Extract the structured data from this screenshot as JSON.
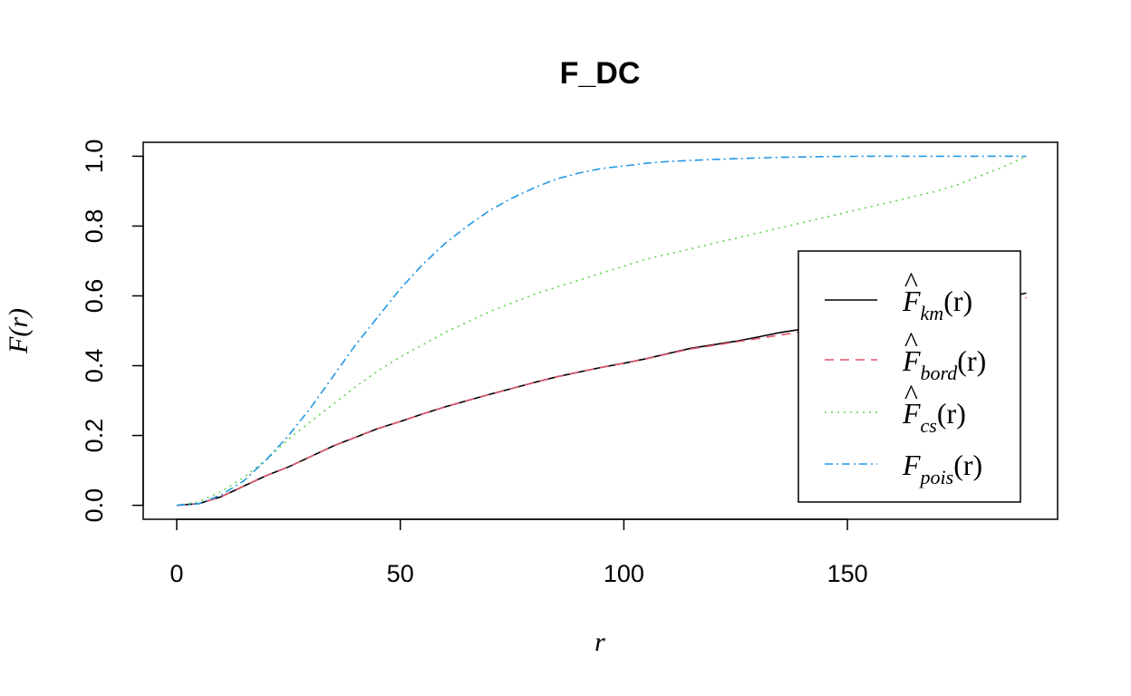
{
  "chart_data": {
    "type": "line",
    "title": "F_DC",
    "xlabel": "r",
    "ylabel": "F(r)",
    "xlim": [
      -7.5,
      197
    ],
    "ylim": [
      -0.04,
      1.04
    ],
    "xticks": [
      0,
      50,
      100,
      150
    ],
    "yticks": [
      0.0,
      0.2,
      0.4,
      0.6,
      0.8,
      1.0
    ],
    "xtick_labels": [
      "0",
      "50",
      "100",
      "150"
    ],
    "ytick_labels": [
      "0.0",
      "0.2",
      "0.4",
      "0.6",
      "0.8",
      "1.0"
    ],
    "grid": false,
    "legend_position": "right",
    "x": [
      0,
      5,
      10,
      15,
      20,
      25,
      30,
      35,
      40,
      45,
      50,
      55,
      60,
      65,
      70,
      75,
      80,
      85,
      90,
      95,
      100,
      105,
      110,
      115,
      120,
      125,
      130,
      135,
      140,
      145,
      150,
      155,
      160,
      165,
      170,
      175,
      180,
      185,
      190
    ],
    "series": [
      {
        "name": "km",
        "color": "#000000",
        "dash": "",
        "values": [
          0,
          0.005,
          0.025,
          0.055,
          0.085,
          0.11,
          0.14,
          0.17,
          0.195,
          0.22,
          0.24,
          0.262,
          0.282,
          0.3,
          0.318,
          0.335,
          0.352,
          0.368,
          0.382,
          0.395,
          0.407,
          0.42,
          0.435,
          0.45,
          0.46,
          0.47,
          0.482,
          0.495,
          0.505,
          0.515,
          0.524,
          0.533,
          0.542,
          0.552,
          0.562,
          0.572,
          0.583,
          0.595,
          0.608
        ]
      },
      {
        "name": "bord",
        "color": "#DF536B",
        "dash": "10,7",
        "values": [
          0,
          0.005,
          0.025,
          0.055,
          0.085,
          0.11,
          0.14,
          0.17,
          0.195,
          0.22,
          0.24,
          0.262,
          0.282,
          0.3,
          0.318,
          0.335,
          0.352,
          0.368,
          0.382,
          0.395,
          0.407,
          0.42,
          0.434,
          0.448,
          0.458,
          0.468,
          0.478,
          0.488,
          0.497,
          0.507,
          0.517,
          0.527,
          0.537,
          0.547,
          0.556,
          0.565,
          0.575,
          0.585,
          0.595
        ]
      },
      {
        "name": "cs",
        "color": "#61D04F",
        "dash": "2,5",
        "values": [
          0,
          0.01,
          0.04,
          0.08,
          0.13,
          0.19,
          0.24,
          0.29,
          0.34,
          0.385,
          0.425,
          0.46,
          0.495,
          0.525,
          0.555,
          0.58,
          0.605,
          0.625,
          0.645,
          0.665,
          0.685,
          0.705,
          0.72,
          0.735,
          0.75,
          0.765,
          0.78,
          0.795,
          0.81,
          0.825,
          0.84,
          0.855,
          0.87,
          0.885,
          0.9,
          0.92,
          0.945,
          0.97,
          1.0
        ]
      },
      {
        "name": "pois",
        "color": "#2297E6",
        "dash": "9,4,2,4",
        "values": [
          0,
          0.005,
          0.03,
          0.07,
          0.13,
          0.2,
          0.28,
          0.37,
          0.46,
          0.54,
          0.62,
          0.69,
          0.75,
          0.8,
          0.845,
          0.88,
          0.91,
          0.935,
          0.952,
          0.965,
          0.972,
          0.98,
          0.985,
          0.988,
          0.991,
          0.993,
          0.995,
          0.997,
          0.998,
          0.999,
          0.9995,
          1,
          1,
          1,
          1,
          1,
          1,
          1,
          1
        ]
      }
    ],
    "legend": {
      "entries": [
        {
          "series": "km",
          "base": "F",
          "hat": true,
          "sub": "km",
          "arg": "(r)"
        },
        {
          "series": "bord",
          "base": "F",
          "hat": true,
          "sub": "bord",
          "arg": "(r)"
        },
        {
          "series": "cs",
          "base": "F",
          "hat": true,
          "sub": "cs",
          "arg": "(r)"
        },
        {
          "series": "pois",
          "base": "F",
          "hat": false,
          "sub": "pois",
          "arg": "(r)"
        }
      ]
    }
  }
}
